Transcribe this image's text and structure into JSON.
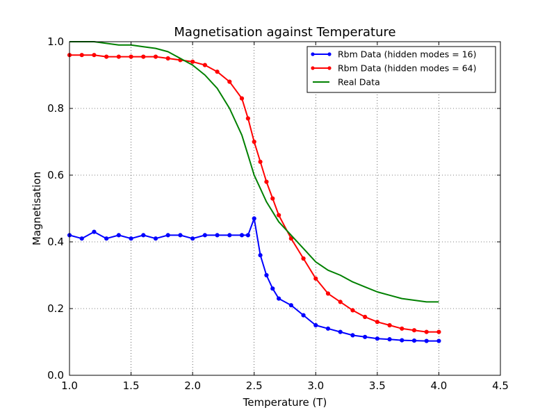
{
  "chart_data": {
    "type": "line",
    "title": "Magnetisation against Temperature",
    "xlabel": "Temperature (T)",
    "ylabel": "Magnetisation",
    "xlim": [
      1.0,
      4.5
    ],
    "ylim": [
      0.0,
      1.0
    ],
    "xticks": [
      "1.0",
      "1.5",
      "2.0",
      "2.5",
      "3.0",
      "3.5",
      "4.0",
      "4.5"
    ],
    "yticks": [
      "0.0",
      "0.2",
      "0.4",
      "0.6",
      "0.8",
      "1.0"
    ],
    "grid": true,
    "legend_position": "top-right",
    "series": [
      {
        "name": "Rbm Data (hidden modes = 16)",
        "color": "#0000ff",
        "markers": true,
        "x": [
          1.0,
          1.1,
          1.2,
          1.3,
          1.4,
          1.5,
          1.6,
          1.7,
          1.8,
          1.9,
          2.0,
          2.1,
          2.2,
          2.3,
          2.4,
          2.45,
          2.5,
          2.55,
          2.6,
          2.65,
          2.7,
          2.8,
          2.9,
          3.0,
          3.1,
          3.2,
          3.3,
          3.4,
          3.5,
          3.6,
          3.7,
          3.8,
          3.9,
          4.0
        ],
        "y": [
          0.42,
          0.41,
          0.43,
          0.41,
          0.42,
          0.41,
          0.42,
          0.41,
          0.42,
          0.42,
          0.41,
          0.42,
          0.42,
          0.42,
          0.42,
          0.42,
          0.47,
          0.36,
          0.3,
          0.26,
          0.23,
          0.21,
          0.18,
          0.15,
          0.14,
          0.13,
          0.12,
          0.115,
          0.11,
          0.108,
          0.105,
          0.104,
          0.103,
          0.103
        ]
      },
      {
        "name": "Rbm Data (hidden modes = 64)",
        "color": "#ff0000",
        "markers": true,
        "x": [
          1.0,
          1.1,
          1.2,
          1.3,
          1.4,
          1.5,
          1.6,
          1.7,
          1.8,
          1.9,
          2.0,
          2.1,
          2.2,
          2.3,
          2.4,
          2.45,
          2.5,
          2.55,
          2.6,
          2.65,
          2.7,
          2.8,
          2.9,
          3.0,
          3.1,
          3.2,
          3.3,
          3.4,
          3.5,
          3.6,
          3.7,
          3.8,
          3.9,
          4.0
        ],
        "y": [
          0.96,
          0.96,
          0.96,
          0.955,
          0.955,
          0.955,
          0.955,
          0.955,
          0.95,
          0.945,
          0.94,
          0.93,
          0.91,
          0.88,
          0.83,
          0.77,
          0.7,
          0.64,
          0.58,
          0.53,
          0.48,
          0.41,
          0.35,
          0.29,
          0.245,
          0.22,
          0.195,
          0.175,
          0.16,
          0.15,
          0.14,
          0.135,
          0.13,
          0.13
        ]
      },
      {
        "name": "Real Data",
        "color": "#008000",
        "markers": false,
        "x": [
          1.0,
          1.1,
          1.2,
          1.3,
          1.4,
          1.5,
          1.6,
          1.7,
          1.8,
          1.9,
          2.0,
          2.1,
          2.2,
          2.3,
          2.4,
          2.45,
          2.5,
          2.55,
          2.6,
          2.65,
          2.7,
          2.8,
          2.9,
          3.0,
          3.1,
          3.2,
          3.3,
          3.4,
          3.5,
          3.6,
          3.7,
          3.8,
          3.9,
          4.0
        ],
        "y": [
          1.0,
          1.0,
          1.0,
          0.995,
          0.99,
          0.99,
          0.985,
          0.98,
          0.97,
          0.95,
          0.93,
          0.9,
          0.86,
          0.8,
          0.72,
          0.66,
          0.6,
          0.56,
          0.52,
          0.49,
          0.46,
          0.42,
          0.38,
          0.34,
          0.315,
          0.3,
          0.28,
          0.265,
          0.25,
          0.24,
          0.23,
          0.225,
          0.22,
          0.22
        ]
      }
    ]
  }
}
